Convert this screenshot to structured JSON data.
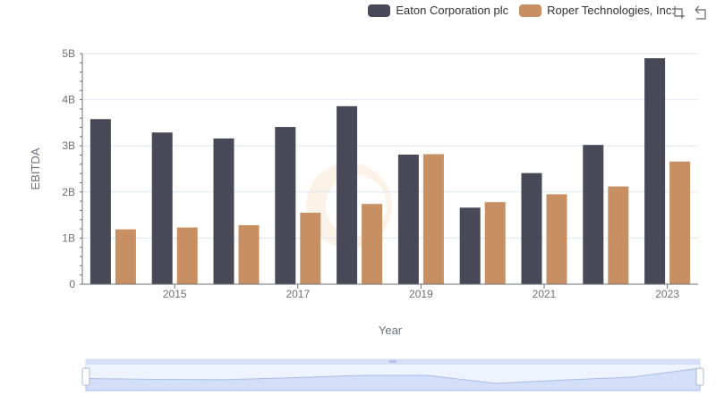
{
  "legend": {
    "items": [
      {
        "label": "Eaton Corporation plc",
        "color": "#484857"
      },
      {
        "label": "Roper Technologies, Inc.",
        "color": "#c89062"
      }
    ]
  },
  "toolbox": {
    "icons": [
      "zoom-icon",
      "restore-icon"
    ]
  },
  "chart_data": {
    "type": "bar",
    "categories": [
      "2014",
      "2015",
      "2016",
      "2017",
      "2018",
      "2019",
      "2020",
      "2021",
      "2022",
      "2023"
    ],
    "x_tick_labels": [
      "2015",
      "2017",
      "2019",
      "2021",
      "2023"
    ],
    "series": [
      {
        "name": "Eaton Corporation plc",
        "color": "#484857",
        "values": [
          3.58,
          3.29,
          3.16,
          3.41,
          3.86,
          2.81,
          1.66,
          2.41,
          3.02,
          4.9
        ]
      },
      {
        "name": "Roper Technologies, Inc.",
        "color": "#c89062",
        "values": [
          1.19,
          1.23,
          1.28,
          1.55,
          1.74,
          2.82,
          1.78,
          1.95,
          2.12,
          2.66
        ]
      }
    ],
    "xlabel": "Year",
    "ylabel": "EBITDA",
    "ylim": [
      0,
      5
    ],
    "y_tick_labels": [
      "0",
      "1B",
      "2B",
      "3B",
      "4B",
      "5B"
    ],
    "grid": true,
    "legend_position": "top-right",
    "data_zoom": {
      "start": 0,
      "end": 100
    }
  }
}
